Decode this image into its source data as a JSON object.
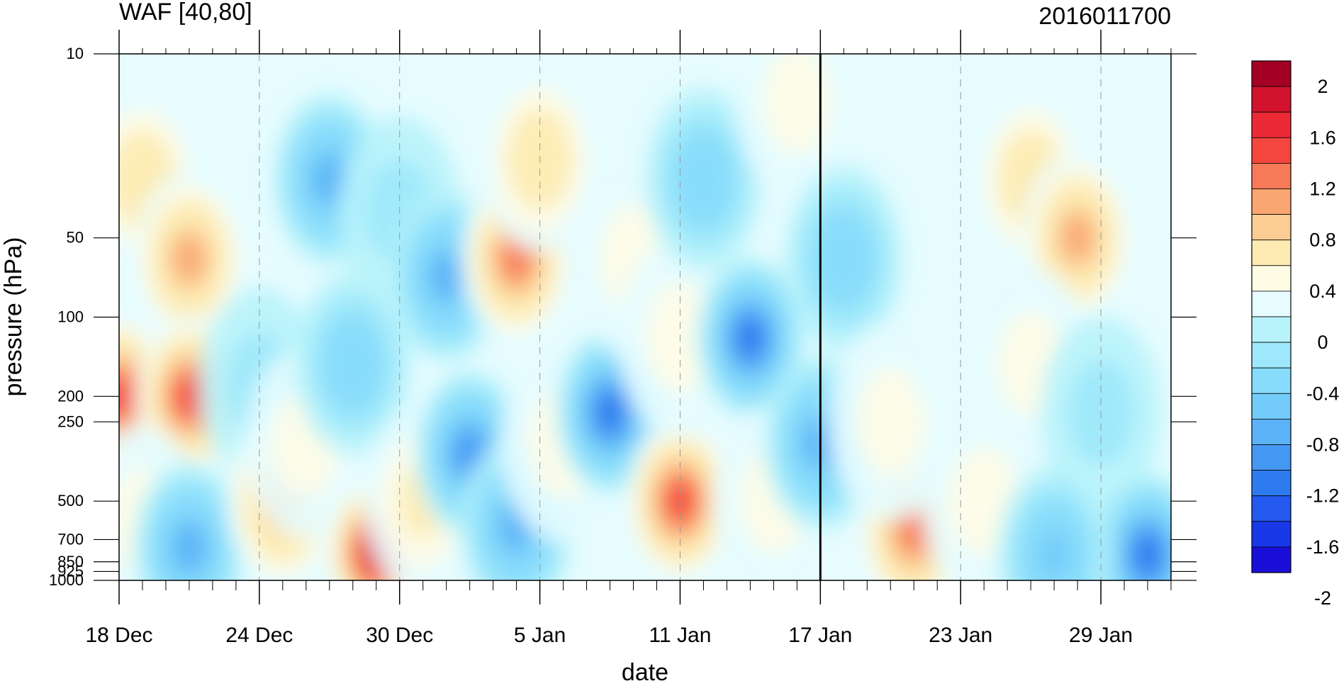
{
  "chart_data": {
    "type": "heatmap",
    "title_left": "WAF [40,80]",
    "title_right": "2016011700",
    "xlabel": "date",
    "ylabel": "pressure (hPa)",
    "x_ticks": [
      "18 Dec",
      "24 Dec",
      "30 Dec",
      "5 Jan",
      "11 Jan",
      "17 Jan",
      "23 Jan",
      "29 Jan"
    ],
    "x_range": [
      "2015-12-18",
      "2016-02-01"
    ],
    "y_ticks": [
      10,
      50,
      100,
      200,
      250,
      500,
      700,
      850,
      925,
      1000
    ],
    "y_range": [
      1000,
      10
    ],
    "y_scale": "log (inverted)",
    "marker_date": "2016-01-17",
    "colorbar": {
      "labels": [
        "2",
        "1.6",
        "1.2",
        "0.8",
        "0.4",
        "0",
        "-0.4",
        "-0.8",
        "-1.2",
        "-1.6",
        "-2"
      ],
      "colors": [
        "#a50026",
        "#d2132d",
        "#eb2a35",
        "#f4463e",
        "#f77a58",
        "#f9a672",
        "#fbcd95",
        "#fdebb3",
        "#fffce6",
        "#e6fcff",
        "#b8f3fb",
        "#9de8fb",
        "#87dcfb",
        "#72cbf8",
        "#5bb2f6",
        "#4498f3",
        "#2e7bf0",
        "#2359ee",
        "#1938e8",
        "#1a0fd9"
      ]
    },
    "time_pressure_field": [
      {
        "date": "2015-12-19",
        "pressure": 30,
        "value": 0.6
      },
      {
        "date": "2015-12-21",
        "pressure": 60,
        "value": 1.0
      },
      {
        "date": "2015-12-18",
        "pressure": 200,
        "value": 1.3
      },
      {
        "date": "2015-12-21",
        "pressure": 200,
        "value": 1.4
      },
      {
        "date": "2015-12-19",
        "pressure": 600,
        "value": 0.3
      },
      {
        "date": "2015-12-21",
        "pressure": 750,
        "value": -1.0
      },
      {
        "date": "2015-12-24",
        "pressure": 180,
        "value": -0.3
      },
      {
        "date": "2015-12-25",
        "pressure": 500,
        "value": 0.9
      },
      {
        "date": "2015-12-26",
        "pressure": 300,
        "value": 0.3
      },
      {
        "date": "2015-12-27",
        "pressure": 30,
        "value": -1.0
      },
      {
        "date": "2015-12-28",
        "pressure": 150,
        "value": -0.6
      },
      {
        "date": "2015-12-29",
        "pressure": 780,
        "value": 1.9
      },
      {
        "date": "2015-12-31",
        "pressure": 500,
        "value": 0.4
      },
      {
        "date": "2015-12-30",
        "pressure": 40,
        "value": -0.3
      },
      {
        "date": "2016-01-01",
        "pressure": 70,
        "value": -1.0
      },
      {
        "date": "2016-01-02",
        "pressure": 330,
        "value": -1.2
      },
      {
        "date": "2016-01-04",
        "pressure": 620,
        "value": -0.9
      },
      {
        "date": "2016-01-04",
        "pressure": 60,
        "value": 1.1
      },
      {
        "date": "2016-01-05",
        "pressure": 25,
        "value": 0.5
      },
      {
        "date": "2016-01-06",
        "pressure": 300,
        "value": 0.0
      },
      {
        "date": "2016-01-08",
        "pressure": 230,
        "value": -1.3
      },
      {
        "date": "2016-01-09",
        "pressure": 60,
        "value": 0.1
      },
      {
        "date": "2016-01-11",
        "pressure": 500,
        "value": 1.3
      },
      {
        "date": "2016-01-11",
        "pressure": 120,
        "value": 0.0
      },
      {
        "date": "2016-01-12",
        "pressure": 30,
        "value": -0.6
      },
      {
        "date": "2016-01-14",
        "pressure": 120,
        "value": -1.4
      },
      {
        "date": "2016-01-15",
        "pressure": 500,
        "value": 0.3
      },
      {
        "date": "2016-01-16",
        "pressure": 15,
        "value": 0.1
      },
      {
        "date": "2016-01-17",
        "pressure": 300,
        "value": -0.9
      },
      {
        "date": "2016-01-18",
        "pressure": 60,
        "value": -0.5
      },
      {
        "date": "2016-01-21",
        "pressure": 650,
        "value": 1.1
      },
      {
        "date": "2016-01-20",
        "pressure": 250,
        "value": 0.1
      },
      {
        "date": "2016-01-24",
        "pressure": 500,
        "value": 0.0
      },
      {
        "date": "2016-01-26",
        "pressure": 30,
        "value": 0.6
      },
      {
        "date": "2016-01-28",
        "pressure": 50,
        "value": 1.0
      },
      {
        "date": "2016-01-26",
        "pressure": 150,
        "value": 0.3
      },
      {
        "date": "2016-01-29",
        "pressure": 230,
        "value": -0.3
      },
      {
        "date": "2016-01-31",
        "pressure": 800,
        "value": -1.3
      },
      {
        "date": "2016-01-27",
        "pressure": 800,
        "value": -0.8
      }
    ]
  }
}
